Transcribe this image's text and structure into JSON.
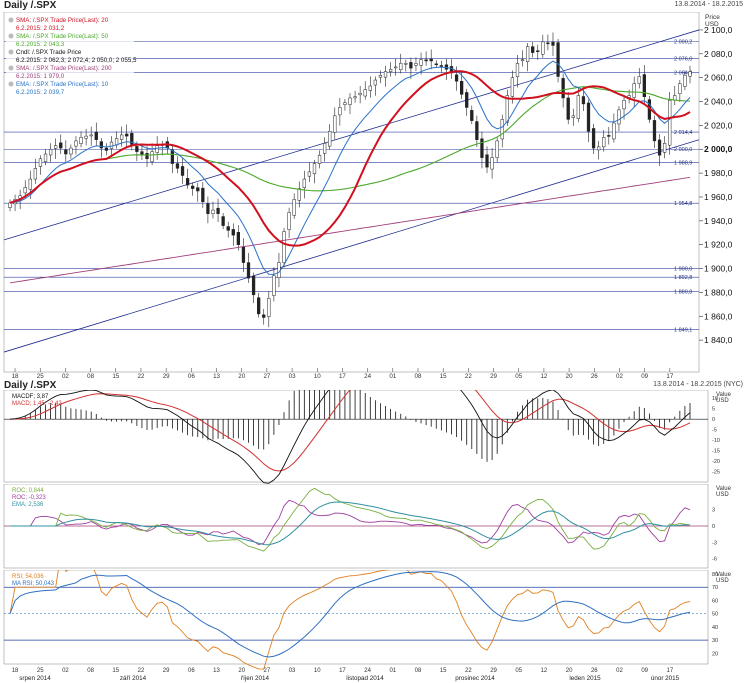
{
  "main_header": {
    "title": "Daily /.SPX",
    "range": "13.8.2014 - 18.2.2015"
  },
  "lower_header": {
    "title": "Daily /.SPX",
    "range": "13.8.2014 - 18.2.2015 (NYC)"
  },
  "axis": {
    "price_unit_line1": "Price",
    "price_unit_line2": "USD",
    "value_unit_line1": "Value",
    "value_unit_line2": "USD"
  },
  "colors": {
    "sma20": "#d0101e",
    "sma50": "#4ca82c",
    "sma200": "#a0407a",
    "ema10": "#2a72c8",
    "grid": "#3040a0",
    "trend": "#202c90",
    "macd": "#111111",
    "signal": "#d03030",
    "roc": "#7ab040",
    "roc2": "#a040a0",
    "ema_roc": "#3090a0",
    "rsi": "#e08020",
    "ma_rsi": "#3070c0"
  },
  "legend": {
    "sma20": {
      "label": "SMA: /.SPX Trade Price(Last): 20",
      "value": "6.2.2015: 2 031,2"
    },
    "sma50": {
      "label": "SMA: /.SPX Trade Price(Last): 50",
      "value": "6.2.2015: 2 043,3"
    },
    "ohlc": {
      "label": "Cndl: /.SPX Trade Price",
      "value": "6.2.2015: 2 062,3; 2 072,4; 2 050,0; 2 055,5"
    },
    "sma200": {
      "label": "SMA: /.SPX Trade Price(Last): 200",
      "value": "6.2.2015: 1 979,0"
    },
    "ema10": {
      "label": "EMA: /.SPX Trade Price(Last): 10",
      "value": "6.2.2015: 2 039,7"
    }
  },
  "macd_legend": {
    "l1": "MACDF; 3,87",
    "l2": "MACD; 1,45; -2,42"
  },
  "roc_legend": {
    "l1": "ROC; 0,844",
    "l2": "ROC; -0,323",
    "l3": "EMA; 2,536"
  },
  "rsi_legend": {
    "l1": "RSI; 54,036",
    "l2": "MA RSI; 50,043"
  },
  "chart_data": [
    {
      "type": "candlestick",
      "title": "Daily /.SPX",
      "ylim": [
        1820,
        2110
      ],
      "y_ticks": [
        "2 100,0",
        "2 080,0",
        "2 060,0",
        "2 040,0",
        "2 020,0",
        "2 000,0",
        "1 980,0",
        "1 960,0",
        "1 940,0",
        "1 920,0",
        "1 900,0",
        "1 880,0",
        "1 860,0",
        "1 840,0"
      ],
      "y_tick_values": [
        2100,
        2080,
        2060,
        2040,
        2020,
        2000,
        1980,
        1960,
        1940,
        1920,
        1900,
        1880,
        1860,
        1840
      ],
      "levels": [
        {
          "value": 2090.2,
          "label": "2 090,2"
        },
        {
          "value": 2076.0,
          "label": "2 076,0"
        },
        {
          "value": 2064.3,
          "label": "2 064,3"
        },
        {
          "value": 2014.4,
          "label": "2 014,4"
        },
        {
          "value": 2000.0,
          "label": "2 000,0"
        },
        {
          "value": 1988.9,
          "label": "1 988,9"
        },
        {
          "value": 1954.8,
          "label": "1 954,8"
        },
        {
          "value": 1900.0,
          "label": "1 900,0"
        },
        {
          "value": 1892.8,
          "label": "1 892,8"
        },
        {
          "value": 1880.8,
          "label": "1 880,8"
        },
        {
          "value": 1849.1,
          "label": "1 849,1"
        }
      ],
      "x_ticks": [
        "18",
        "25",
        "02",
        "08",
        "15",
        "22",
        "29",
        "06",
        "13",
        "20",
        "27",
        "03",
        "10",
        "17",
        "24",
        "01",
        "08",
        "15",
        "22",
        "29",
        "05",
        "12",
        "20",
        "26",
        "02",
        "09",
        "17"
      ],
      "months": [
        "srpen 2014",
        "září 2014",
        "říjen 2014",
        "listopad 2014",
        "prosinec 2014",
        "leden 2015",
        "únor 2015"
      ],
      "close": [
        1955,
        1958,
        1961,
        1968,
        1975,
        1984,
        1992,
        1996,
        2000,
        2003,
        2001,
        1996,
        2001,
        2007,
        2010,
        2011,
        2012,
        2008,
        2001,
        1999,
        2006,
        2009,
        2012,
        2011,
        2004,
        1998,
        1995,
        1992,
        1998,
        2003,
        2004,
        2001,
        1988,
        1984,
        1978,
        1970,
        1967,
        1965,
        1956,
        1946,
        1949,
        1946,
        1936,
        1932,
        1928,
        1920,
        1905,
        1892,
        1878,
        1862,
        1859,
        1875,
        1894,
        1905,
        1931,
        1947,
        1958,
        1967,
        1975,
        1981,
        1988,
        1995,
        2005,
        2015,
        2028,
        2035,
        2039,
        2043,
        2044,
        2047,
        2050,
        2053,
        2058,
        2062,
        2065,
        2067,
        2069,
        2072,
        2072,
        2068,
        2072,
        2075,
        2074,
        2074,
        2071,
        2070,
        2067,
        2064,
        2057,
        2046,
        2035,
        2024,
        2008,
        1993,
        1985,
        1993,
        2007,
        2025,
        2045,
        2060,
        2072,
        2075,
        2086,
        2081,
        2082,
        2090,
        2089,
        2087,
        2061,
        2043,
        2025,
        2028,
        2045,
        2038,
        2015,
        2001,
        2002,
        2010,
        2011,
        2022,
        2033,
        2041,
        2045,
        2055,
        2061,
        2044,
        2025,
        2007,
        1995,
        2005,
        2041,
        2045,
        2055,
        2062,
        2065
      ],
      "series": [
        {
          "name": "SMA: /.SPX Trade Price(Last): 20",
          "last": 2031.2
        },
        {
          "name": "SMA: /.SPX Trade Price(Last): 50",
          "last": 2043.3
        },
        {
          "name": "Cndl: /.SPX Trade Price",
          "last": [
            2062.3,
            2072.4,
            2050.0,
            2055.5
          ]
        },
        {
          "name": "SMA: /.SPX Trade Price(Last): 200",
          "last": 1979.0
        },
        {
          "name": "EMA: /.SPX Trade Price(Last): 10",
          "last": 2039.7
        }
      ]
    },
    {
      "type": "line",
      "title": "",
      "ylim": [
        -28,
        12
      ],
      "y_ticks": [
        "10",
        "5",
        "0",
        "-5",
        "-10",
        "-15",
        "-20",
        "-25"
      ],
      "y_tick_values": [
        10,
        5,
        0,
        -5,
        -10,
        -15,
        -20,
        -25
      ],
      "series": [
        {
          "name": "MACDF",
          "last": 3.87
        },
        {
          "name": "MACD",
          "last": [
            1.45,
            -2.42
          ]
        }
      ]
    },
    {
      "type": "line",
      "title": "",
      "ylim": [
        -7,
        7
      ],
      "y_ticks": [
        "3",
        "0",
        "-3",
        "-6"
      ],
      "y_tick_values": [
        3,
        0,
        -3,
        -6
      ],
      "series": [
        {
          "name": "ROC",
          "last": 0.844
        },
        {
          "name": "ROC",
          "last": -0.323
        },
        {
          "name": "EMA",
          "last": 2.536
        }
      ]
    },
    {
      "type": "line",
      "title": "",
      "ylim": [
        15,
        80
      ],
      "y_ticks": [
        "80",
        "70",
        "60",
        "50",
        "40",
        "30",
        "20"
      ],
      "y_tick_values": [
        80,
        70,
        60,
        50,
        40,
        30,
        20
      ],
      "levels": [
        70,
        50,
        30
      ],
      "series": [
        {
          "name": "RSI",
          "last": 54.036
        },
        {
          "name": "MA RSI",
          "last": 50.043
        }
      ]
    }
  ]
}
